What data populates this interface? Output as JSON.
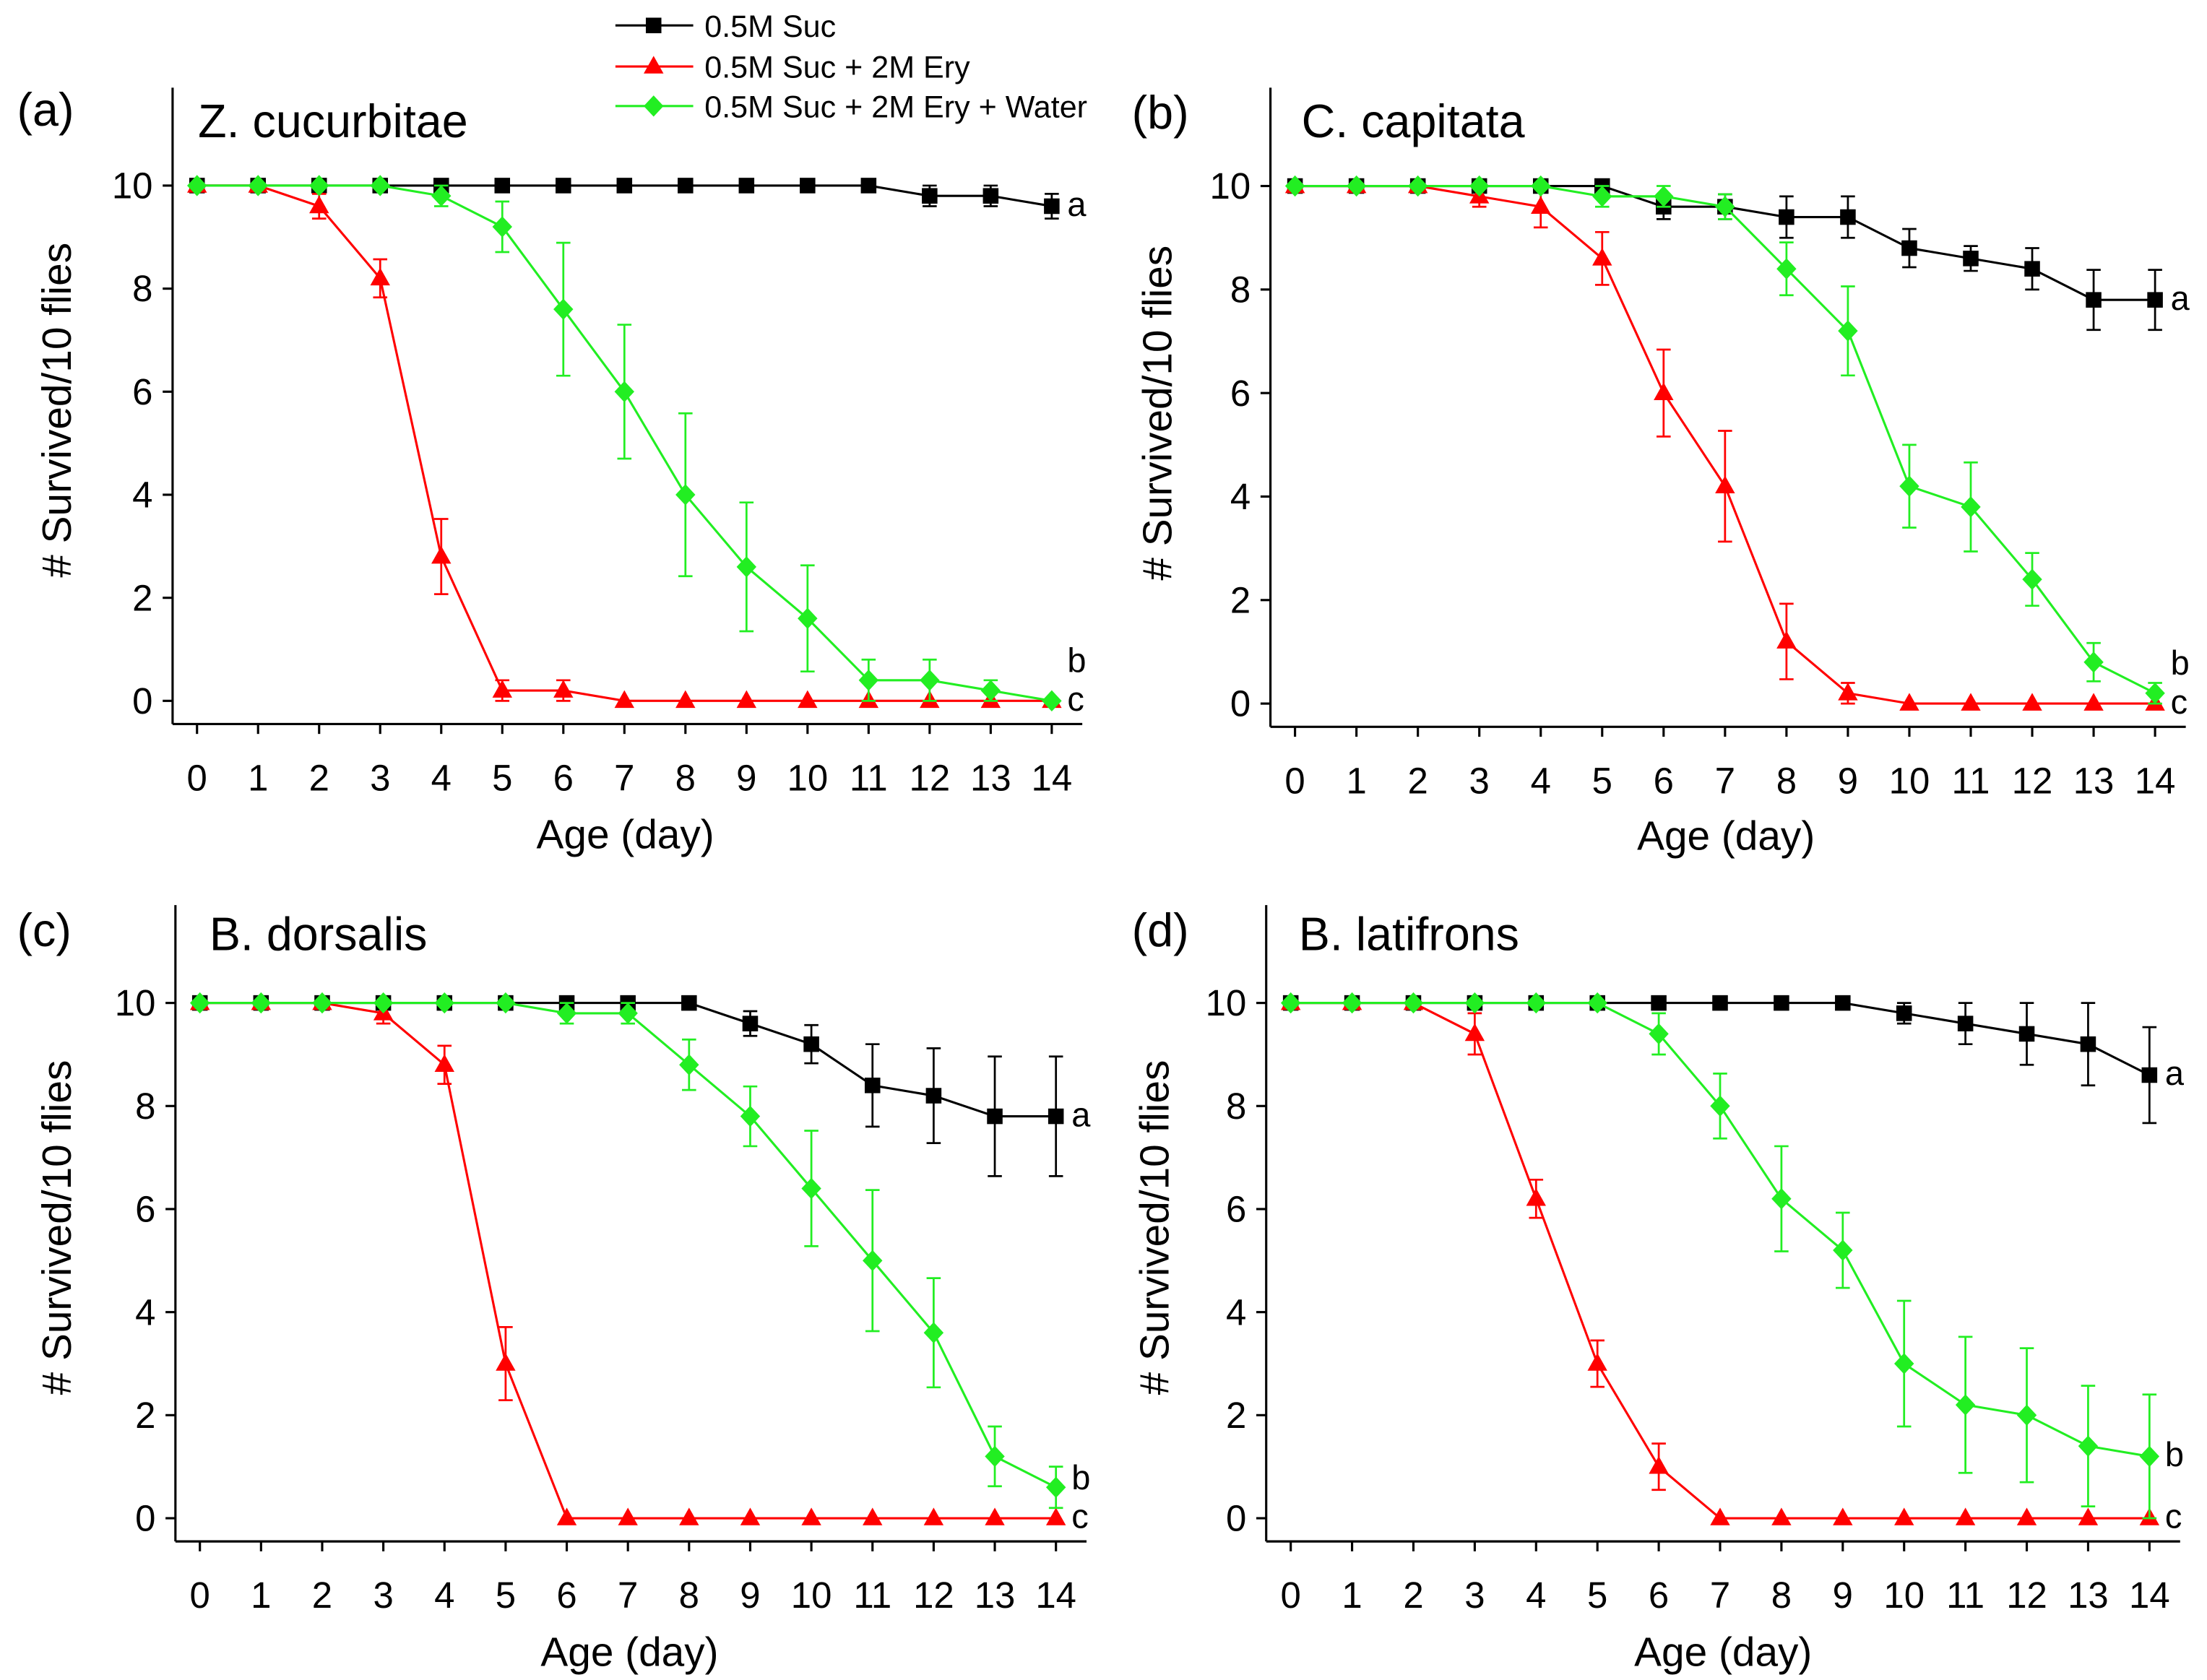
{
  "legend": {
    "position": "top-center",
    "items": [
      {
        "label": "0.5M Suc",
        "color": "#000000",
        "marker": "square"
      },
      {
        "label": "0.5M Suc + 2M Ery",
        "color": "#ff0000",
        "marker": "triangle"
      },
      {
        "label": "0.5M Suc + 2M Ery + Water",
        "color": "#22ee22",
        "marker": "diamond"
      }
    ]
  },
  "chart_data": [
    {
      "type": "line",
      "panel_label": "(a)",
      "title": "Z. cucurbitae",
      "xlabel": "Age (day)",
      "ylabel": "# Survived/10 flies",
      "x": [
        0,
        1,
        2,
        3,
        4,
        5,
        6,
        7,
        8,
        9,
        10,
        11,
        12,
        13,
        14
      ],
      "xticks": [
        0,
        1,
        2,
        3,
        4,
        5,
        6,
        7,
        8,
        9,
        10,
        11,
        12,
        13,
        14
      ],
      "yticks": [
        0,
        2,
        4,
        6,
        8,
        10
      ],
      "xlim": [
        -0.4,
        14.5
      ],
      "ylim": [
        -0.45,
        11.9
      ],
      "grid": false,
      "series": [
        {
          "name": "0.5M Suc",
          "color": "#000000",
          "marker": "square",
          "significance": "a",
          "values": [
            10,
            10,
            10,
            10,
            10,
            10,
            10,
            10,
            10,
            10,
            10,
            10,
            9.8,
            9.8,
            9.6
          ],
          "errors": [
            0,
            0,
            0,
            0,
            0,
            0,
            0,
            0,
            0,
            0,
            0,
            0,
            0.2,
            0.2,
            0.24
          ]
        },
        {
          "name": "0.5M Suc + 2M Ery",
          "color": "#ff0000",
          "marker": "triangle",
          "significance": "c",
          "values": [
            10,
            10,
            9.6,
            8.2,
            2.8,
            0.2,
            0.2,
            0,
            0,
            0,
            0,
            0,
            0,
            0,
            0
          ],
          "errors": [
            0,
            0,
            0.24,
            0.37,
            0.73,
            0.2,
            0.2,
            0,
            0,
            0,
            0,
            0,
            0,
            0,
            0
          ]
        },
        {
          "name": "0.5M Suc + 2M Ery + Water",
          "color": "#22ee22",
          "marker": "diamond",
          "significance": "b",
          "values": [
            10,
            10,
            10,
            10,
            9.8,
            9.2,
            7.6,
            6.0,
            4.0,
            2.6,
            1.6,
            0.4,
            0.4,
            0.2,
            0
          ],
          "errors": [
            0,
            0,
            0,
            0,
            0.2,
            0.49,
            1.29,
            1.3,
            1.58,
            1.25,
            1.03,
            0.4,
            0.4,
            0.2,
            0
          ]
        }
      ]
    },
    {
      "type": "line",
      "panel_label": "(b)",
      "title": "C. capitata",
      "xlabel": "Age (day)",
      "ylabel": "# Survived/10 flies",
      "x": [
        0,
        1,
        2,
        3,
        4,
        5,
        6,
        7,
        8,
        9,
        10,
        11,
        12,
        13,
        14
      ],
      "xticks": [
        0,
        1,
        2,
        3,
        4,
        5,
        6,
        7,
        8,
        9,
        10,
        11,
        12,
        13,
        14
      ],
      "yticks": [
        0,
        2,
        4,
        6,
        8,
        10
      ],
      "xlim": [
        -0.4,
        14.5
      ],
      "ylim": [
        -0.45,
        11.9
      ],
      "grid": false,
      "series": [
        {
          "name": "0.5M Suc",
          "color": "#000000",
          "marker": "square",
          "significance": "a",
          "values": [
            10,
            10,
            10,
            10,
            10,
            10,
            9.6,
            9.6,
            9.4,
            9.4,
            8.8,
            8.6,
            8.4,
            7.8,
            7.8
          ],
          "errors": [
            0,
            0,
            0,
            0,
            0,
            0,
            0.24,
            0.24,
            0.4,
            0.4,
            0.37,
            0.24,
            0.4,
            0.58,
            0.58
          ]
        },
        {
          "name": "0.5M Suc + 2M Ery",
          "color": "#ff0000",
          "marker": "triangle",
          "significance": "c",
          "values": [
            10,
            10,
            10,
            9.8,
            9.6,
            8.6,
            6.0,
            4.2,
            1.2,
            0.2,
            0,
            0,
            0,
            0,
            0
          ],
          "errors": [
            0,
            0,
            0,
            0.2,
            0.4,
            0.51,
            0.84,
            1.07,
            0.73,
            0.2,
            0,
            0,
            0,
            0,
            0
          ]
        },
        {
          "name": "0.5M Suc + 2M Ery + Water",
          "color": "#22ee22",
          "marker": "diamond",
          "significance": "b",
          "values": [
            10,
            10,
            10,
            10,
            10,
            9.8,
            9.8,
            9.6,
            8.4,
            7.2,
            4.2,
            3.8,
            2.4,
            0.8,
            0.2
          ],
          "errors": [
            0,
            0,
            0,
            0,
            0,
            0.2,
            0.2,
            0.24,
            0.51,
            0.86,
            0.8,
            0.86,
            0.51,
            0.37,
            0.2
          ]
        }
      ]
    },
    {
      "type": "line",
      "panel_label": "(c)",
      "title": "B. dorsalis",
      "xlabel": "Age (day)",
      "ylabel": "# Survived/10 flies",
      "x": [
        0,
        1,
        2,
        3,
        4,
        5,
        6,
        7,
        8,
        9,
        10,
        11,
        12,
        13,
        14
      ],
      "xticks": [
        0,
        1,
        2,
        3,
        4,
        5,
        6,
        7,
        8,
        9,
        10,
        11,
        12,
        13,
        14
      ],
      "yticks": [
        0,
        2,
        4,
        6,
        8,
        10
      ],
      "xlim": [
        -0.4,
        14.5
      ],
      "ylim": [
        -0.45,
        11.9
      ],
      "grid": false,
      "series": [
        {
          "name": "0.5M Suc",
          "color": "#000000",
          "marker": "square",
          "significance": "a",
          "values": [
            10,
            10,
            10,
            10,
            10,
            10,
            10,
            10,
            10,
            9.6,
            9.2,
            8.4,
            8.2,
            7.8,
            7.8
          ],
          "errors": [
            0,
            0,
            0,
            0,
            0,
            0,
            0,
            0,
            0,
            0.24,
            0.37,
            0.8,
            0.92,
            1.16,
            1.16
          ]
        },
        {
          "name": "0.5M Suc + 2M Ery",
          "color": "#ff0000",
          "marker": "triangle",
          "significance": "c",
          "values": [
            10,
            10,
            10,
            9.8,
            8.8,
            3.0,
            0,
            0,
            0,
            0,
            0,
            0,
            0,
            0,
            0
          ],
          "errors": [
            0,
            0,
            0,
            0.2,
            0.37,
            0.71,
            0,
            0,
            0,
            0,
            0,
            0,
            0,
            0,
            0
          ]
        },
        {
          "name": "0.5M Suc + 2M Ery + Water",
          "color": "#22ee22",
          "marker": "diamond",
          "significance": "b",
          "values": [
            10,
            10,
            10,
            10,
            10,
            10,
            9.8,
            9.8,
            8.8,
            7.8,
            6.4,
            5.0,
            3.6,
            1.2,
            0.6
          ],
          "errors": [
            0,
            0,
            0,
            0,
            0,
            0,
            0.2,
            0.2,
            0.49,
            0.58,
            1.12,
            1.37,
            1.06,
            0.58,
            0.4
          ]
        }
      ]
    },
    {
      "type": "line",
      "panel_label": "(d)",
      "title": "B. latifrons",
      "xlabel": "Age (day)",
      "ylabel": "# Survived/10 flies",
      "x": [
        0,
        1,
        2,
        3,
        4,
        5,
        6,
        7,
        8,
        9,
        10,
        11,
        12,
        13,
        14
      ],
      "xticks": [
        0,
        1,
        2,
        3,
        4,
        5,
        6,
        7,
        8,
        9,
        10,
        11,
        12,
        13,
        14
      ],
      "yticks": [
        0,
        2,
        4,
        6,
        8,
        10
      ],
      "xlim": [
        -0.4,
        14.5
      ],
      "ylim": [
        -0.45,
        11.9
      ],
      "grid": false,
      "series": [
        {
          "name": "0.5M Suc",
          "color": "#000000",
          "marker": "square",
          "significance": "a",
          "values": [
            10,
            10,
            10,
            10,
            10,
            10,
            10,
            10,
            10,
            10,
            9.8,
            9.6,
            9.4,
            9.2,
            8.6
          ],
          "errors": [
            0,
            0,
            0,
            0,
            0,
            0,
            0,
            0,
            0,
            0,
            0.2,
            0.4,
            0.6,
            0.8,
            0.93
          ]
        },
        {
          "name": "0.5M Suc + 2M Ery",
          "color": "#ff0000",
          "marker": "triangle",
          "significance": "c",
          "values": [
            10,
            10,
            10,
            9.4,
            6.2,
            3.0,
            1.0,
            0,
            0,
            0,
            0,
            0,
            0,
            0,
            0
          ],
          "errors": [
            0,
            0,
            0,
            0.4,
            0.37,
            0.45,
            0.45,
            0,
            0,
            0,
            0,
            0,
            0,
            0,
            0
          ]
        },
        {
          "name": "0.5M Suc + 2M Ery + Water",
          "color": "#22ee22",
          "marker": "diamond",
          "significance": "b",
          "values": [
            10,
            10,
            10,
            10,
            10,
            10,
            9.4,
            8.0,
            6.2,
            5.2,
            3.0,
            2.2,
            2.0,
            1.4,
            1.2
          ],
          "errors": [
            0,
            0,
            0,
            0,
            0,
            0,
            0.4,
            0.63,
            1.02,
            0.73,
            1.22,
            1.32,
            1.3,
            1.17,
            1.2
          ]
        }
      ]
    }
  ]
}
